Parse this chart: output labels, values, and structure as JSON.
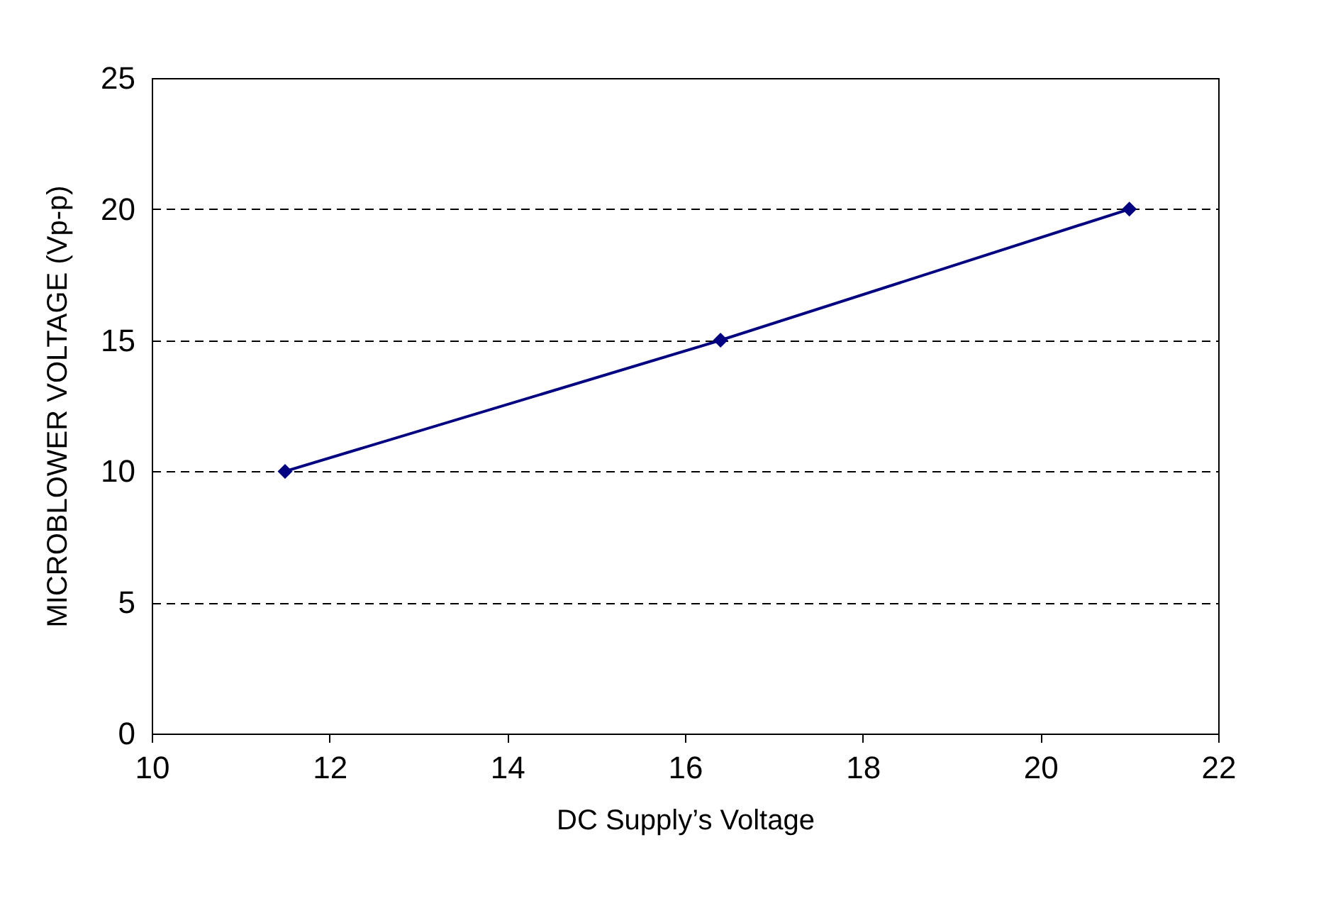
{
  "chart_data": {
    "type": "line",
    "xlabel": "DC Supply’s Voltage",
    "ylabel": "MICROBLOWER VOLTAGE (Vp-p)",
    "x": [
      11.5,
      16.4,
      21
    ],
    "series": [
      {
        "color": "#000080",
        "values": [
          10,
          15,
          20
        ]
      }
    ],
    "xlim": [
      10,
      22
    ],
    "xticks": [
      10,
      12,
      14,
      16,
      18,
      20,
      22
    ],
    "ylim": [
      0,
      25
    ],
    "yticks": [
      0,
      5,
      10,
      15,
      20,
      25
    ],
    "grid": "y",
    "marker": "diamond",
    "line_style": "solid"
  }
}
